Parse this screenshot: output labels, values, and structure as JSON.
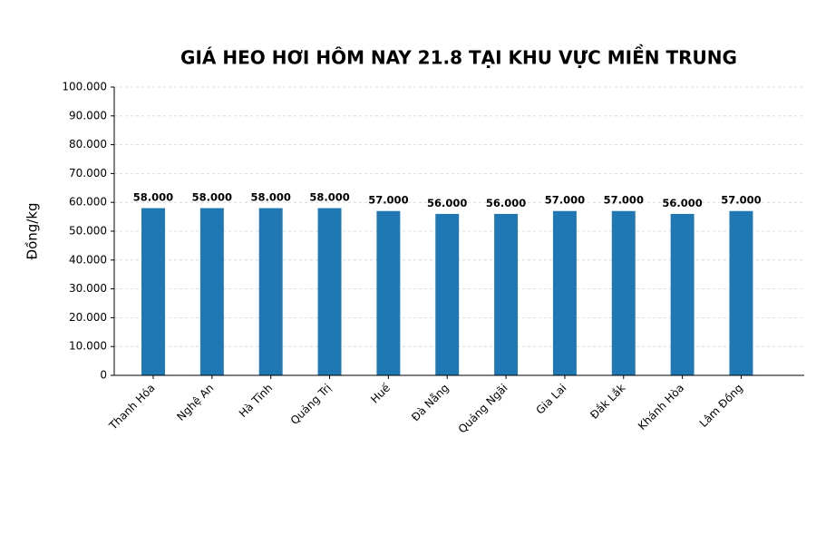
{
  "chart_data": {
    "type": "bar",
    "title": "GIÁ HEO HƠI HÔM NAY 21.8 TẠI KHU VỰC MIỀN TRUNG",
    "y_label": "Đồng/kg",
    "categories": [
      "Thanh Hóa",
      "Nghệ An",
      "Hà Tĩnh",
      "Quảng Trị",
      "Huế",
      "Đà Nẵng",
      "Quảng Ngãi",
      "Gia Lai",
      "Đắk Lắk",
      "Khánh Hòa",
      "Lâm Đồng"
    ],
    "values": [
      58000,
      58000,
      58000,
      58000,
      57000,
      56000,
      56000,
      57000,
      57000,
      56000,
      57000
    ],
    "value_labels": [
      "58.000",
      "58.000",
      "58.000",
      "58.000",
      "57.000",
      "56.000",
      "56.000",
      "57.000",
      "57.000",
      "56.000",
      "57.000"
    ],
    "color": "#1f77b4",
    "ylim": [
      0,
      100000
    ],
    "yticks": [
      0,
      {
        "value": 10000,
        "label": "10.000"
      },
      {
        "value": 20000,
        "label": "20.000"
      },
      {
        "value": 30000,
        "label": "30.000"
      },
      {
        "value": 40000,
        "label": "40.000"
      },
      {
        "value": 50000,
        "label": "50.000"
      },
      {
        "value": 60000,
        "label": "60.000"
      },
      {
        "value": 70000,
        "label": "70.000"
      },
      {
        "value": 80000,
        "label": "80.000"
      },
      {
        "value": 90000,
        "label": "90.000"
      },
      {
        "value": 100000,
        "label": "100.000"
      }
    ],
    "grid": true
  }
}
